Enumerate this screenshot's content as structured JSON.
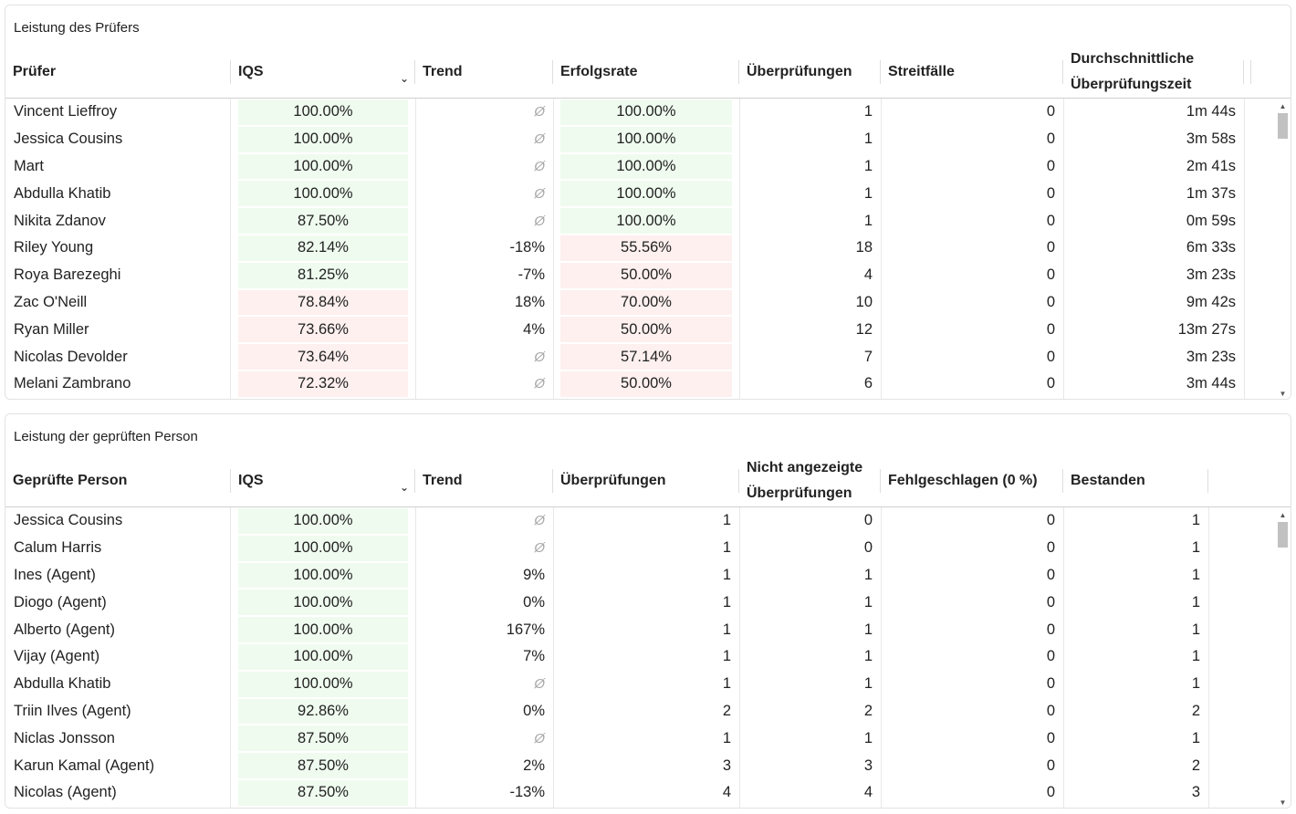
{
  "reviewers": {
    "title": "Leistung des Prüfers",
    "headers": {
      "name": "Prüfer",
      "iqs": "IQS",
      "trend": "Trend",
      "rate": "Erfolgsrate",
      "reviews": "Überprüfungen",
      "disputes": "Streitfälle",
      "avg_time_1": "Durchschnittliche",
      "avg_time_2": "Überprüfungszeit"
    },
    "rows": [
      {
        "name": "Vincent Lieffroy",
        "iqs": "100.00%",
        "iqs_status": "pos",
        "trend": "Ø",
        "rate": "100.00%",
        "rate_status": "pos",
        "reviews": "1",
        "disputes": "0",
        "time": "1m 44s"
      },
      {
        "name": "Jessica Cousins",
        "iqs": "100.00%",
        "iqs_status": "pos",
        "trend": "Ø",
        "rate": "100.00%",
        "rate_status": "pos",
        "reviews": "1",
        "disputes": "0",
        "time": "3m 58s"
      },
      {
        "name": "Mart",
        "iqs": "100.00%",
        "iqs_status": "pos",
        "trend": "Ø",
        "rate": "100.00%",
        "rate_status": "pos",
        "reviews": "1",
        "disputes": "0",
        "time": "2m 41s"
      },
      {
        "name": "Abdulla Khatib",
        "iqs": "100.00%",
        "iqs_status": "pos",
        "trend": "Ø",
        "rate": "100.00%",
        "rate_status": "pos",
        "reviews": "1",
        "disputes": "0",
        "time": "1m 37s"
      },
      {
        "name": "Nikita Zdanov",
        "iqs": "87.50%",
        "iqs_status": "pos",
        "trend": "Ø",
        "rate": "100.00%",
        "rate_status": "pos",
        "reviews": "1",
        "disputes": "0",
        "time": "0m 59s"
      },
      {
        "name": "Riley Young",
        "iqs": "82.14%",
        "iqs_status": "pos",
        "trend": "-18%",
        "rate": "55.56%",
        "rate_status": "neg",
        "reviews": "18",
        "disputes": "0",
        "time": "6m 33s"
      },
      {
        "name": "Roya Barezeghi",
        "iqs": "81.25%",
        "iqs_status": "pos",
        "trend": "-7%",
        "rate": "50.00%",
        "rate_status": "neg",
        "reviews": "4",
        "disputes": "0",
        "time": "3m 23s"
      },
      {
        "name": "Zac O'Neill",
        "iqs": "78.84%",
        "iqs_status": "neg",
        "trend": "18%",
        "rate": "70.00%",
        "rate_status": "neg",
        "reviews": "10",
        "disputes": "0",
        "time": "9m 42s"
      },
      {
        "name": "Ryan Miller",
        "iqs": "73.66%",
        "iqs_status": "neg",
        "trend": "4%",
        "rate": "50.00%",
        "rate_status": "neg",
        "reviews": "12",
        "disputes": "0",
        "time": "13m 27s"
      },
      {
        "name": "Nicolas Devolder",
        "iqs": "73.64%",
        "iqs_status": "neg",
        "trend": "Ø",
        "rate": "57.14%",
        "rate_status": "neg",
        "reviews": "7",
        "disputes": "0",
        "time": "3m 23s"
      },
      {
        "name": "Melani Zambrano",
        "iqs": "72.32%",
        "iqs_status": "neg",
        "trend": "Ø",
        "rate": "50.00%",
        "rate_status": "neg",
        "reviews": "6",
        "disputes": "0",
        "time": "3m 44s"
      }
    ]
  },
  "reviewees": {
    "title": "Leistung der geprüften Person",
    "headers": {
      "name": "Geprüfte Person",
      "iqs": "IQS",
      "trend": "Trend",
      "reviews": "Überprüfungen",
      "hidden_1": "Nicht angezeigte",
      "hidden_2": "Überprüfungen",
      "failed": "Fehlgeschlagen (0 %)",
      "passed": "Bestanden"
    },
    "rows": [
      {
        "name": "Jessica Cousins",
        "iqs": "100.00%",
        "iqs_status": "pos",
        "trend": "Ø",
        "reviews": "1",
        "hidden": "0",
        "failed": "0",
        "passed": "1"
      },
      {
        "name": "Calum Harris",
        "iqs": "100.00%",
        "iqs_status": "pos",
        "trend": "Ø",
        "reviews": "1",
        "hidden": "0",
        "failed": "0",
        "passed": "1"
      },
      {
        "name": "Ines (Agent)",
        "iqs": "100.00%",
        "iqs_status": "pos",
        "trend": "9%",
        "reviews": "1",
        "hidden": "1",
        "failed": "0",
        "passed": "1"
      },
      {
        "name": "Diogo (Agent)",
        "iqs": "100.00%",
        "iqs_status": "pos",
        "trend": "0%",
        "reviews": "1",
        "hidden": "1",
        "failed": "0",
        "passed": "1"
      },
      {
        "name": "Alberto (Agent)",
        "iqs": "100.00%",
        "iqs_status": "pos",
        "trend": "167%",
        "reviews": "1",
        "hidden": "1",
        "failed": "0",
        "passed": "1"
      },
      {
        "name": "Vijay (Agent)",
        "iqs": "100.00%",
        "iqs_status": "pos",
        "trend": "7%",
        "reviews": "1",
        "hidden": "1",
        "failed": "0",
        "passed": "1"
      },
      {
        "name": "Abdulla Khatib",
        "iqs": "100.00%",
        "iqs_status": "pos",
        "trend": "Ø",
        "reviews": "1",
        "hidden": "1",
        "failed": "0",
        "passed": "1"
      },
      {
        "name": "Triin Ilves (Agent)",
        "iqs": "92.86%",
        "iqs_status": "pos",
        "trend": "0%",
        "reviews": "2",
        "hidden": "2",
        "failed": "0",
        "passed": "2"
      },
      {
        "name": "Niclas Jonsson",
        "iqs": "87.50%",
        "iqs_status": "pos",
        "trend": "Ø",
        "reviews": "1",
        "hidden": "1",
        "failed": "0",
        "passed": "1"
      },
      {
        "name": "Karun Kamal (Agent)",
        "iqs": "87.50%",
        "iqs_status": "pos",
        "trend": "2%",
        "reviews": "3",
        "hidden": "3",
        "failed": "0",
        "passed": "2"
      },
      {
        "name": "Nicolas (Agent)",
        "iqs": "87.50%",
        "iqs_status": "pos",
        "trend": "-13%",
        "reviews": "4",
        "hidden": "4",
        "failed": "0",
        "passed": "3"
      }
    ]
  }
}
